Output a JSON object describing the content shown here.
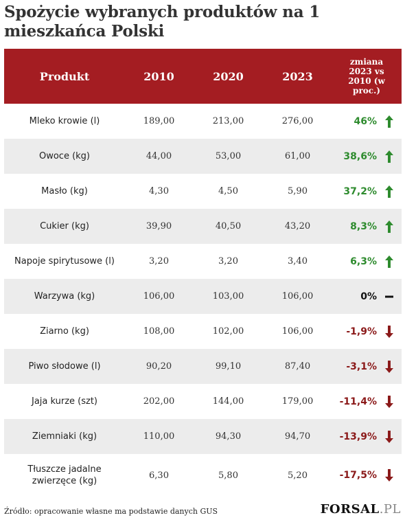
{
  "title": "Spożycie wybranych produktów na 1 mieszkańca Polski",
  "colors": {
    "header_bg": "#a41d22",
    "up": "#2e8b2e",
    "down": "#8b1a1a",
    "neutral": "#111111",
    "alt_row": "#ececec"
  },
  "chart_data": {
    "type": "table",
    "columns": [
      "Produkt",
      "2010",
      "2020",
      "2023",
      "zmiana 2023 vs 2010 (w proc.)"
    ],
    "rows": [
      {
        "product": "Mleko krowie (l)",
        "v2010": "189,00",
        "v2020": "213,00",
        "v2023": "276,00",
        "change": "46%",
        "trend": "up"
      },
      {
        "product": "Owoce (kg)",
        "v2010": "44,00",
        "v2020": "53,00",
        "v2023": "61,00",
        "change": "38,6%",
        "trend": "up"
      },
      {
        "product": "Masło (kg)",
        "v2010": "4,30",
        "v2020": "4,50",
        "v2023": "5,90",
        "change": "37,2%",
        "trend": "up"
      },
      {
        "product": "Cukier (kg)",
        "v2010": "39,90",
        "v2020": "40,50",
        "v2023": "43,20",
        "change": "8,3%",
        "trend": "up"
      },
      {
        "product": "Napoje spirytusowe (l)",
        "v2010": "3,20",
        "v2020": "3,20",
        "v2023": "3,40",
        "change": "6,3%",
        "trend": "up"
      },
      {
        "product": "Warzywa (kg)",
        "v2010": "106,00",
        "v2020": "103,00",
        "v2023": "106,00",
        "change": "0%",
        "trend": "neutral"
      },
      {
        "product": "Ziarno (kg)",
        "v2010": "108,00",
        "v2020": "102,00",
        "v2023": "106,00",
        "change": "-1,9%",
        "trend": "down"
      },
      {
        "product": "Piwo słodowe (l)",
        "v2010": "90,20",
        "v2020": "99,10",
        "v2023": "87,40",
        "change": "-3,1%",
        "trend": "down"
      },
      {
        "product": "Jaja kurze (szt)",
        "v2010": "202,00",
        "v2020": "144,00",
        "v2023": "179,00",
        "change": "-11,4%",
        "trend": "down"
      },
      {
        "product": "Ziemniaki (kg)",
        "v2010": "110,00",
        "v2020": "94,30",
        "v2023": "94,70",
        "change": "-13,9%",
        "trend": "down"
      },
      {
        "product": "Tłuszcze jadalne zwierzęce (kg)",
        "v2010": "6,30",
        "v2020": "5,80",
        "v2023": "5,20",
        "change": "-17,5%",
        "trend": "down"
      }
    ]
  },
  "footer": {
    "source": "Źródło: opracowanie własne ma podstawie danych GUS",
    "logo_main": "FORSAL",
    "logo_suffix": ".PL"
  }
}
